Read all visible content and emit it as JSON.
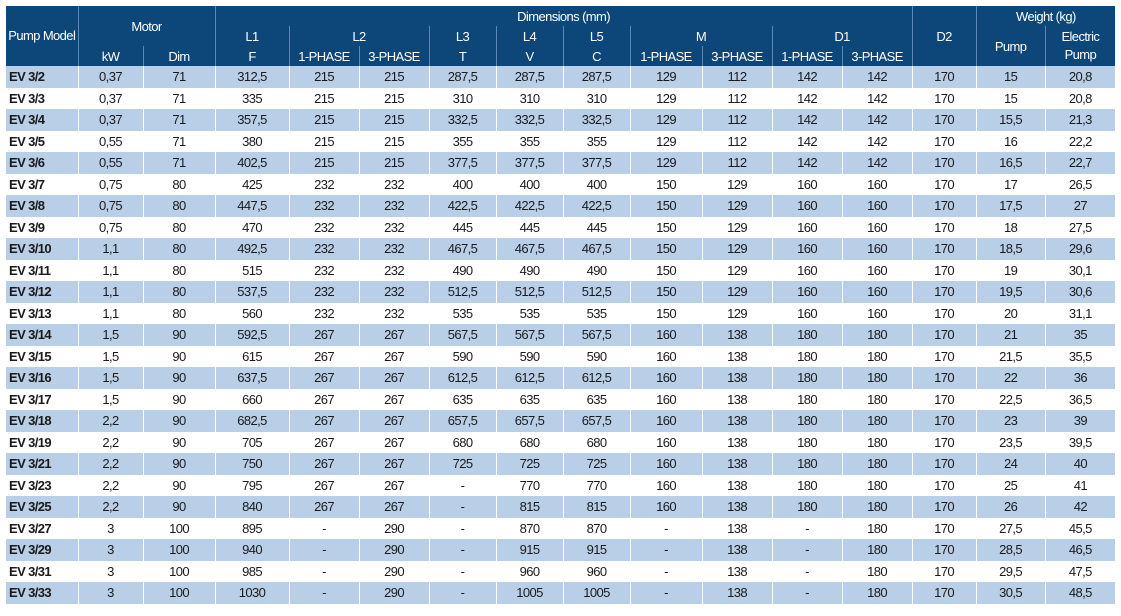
{
  "header": {
    "pump_model": "Pump Model",
    "motor": "Motor",
    "kw": "kW",
    "dim": "Dim",
    "dimensions": "Dimensions (mm)",
    "l1": "L1",
    "l1_sub": "F",
    "l2": "L2",
    "l3": "L3",
    "l3_sub": "T",
    "l4": "L4",
    "l4_sub": "V",
    "l5": "L5",
    "l5_sub": "C",
    "m": "M",
    "d1": "D1",
    "d2": "D2",
    "phase1": "1-PHASE",
    "phase3": "3-PHASE",
    "weight": "Weight (kg)",
    "pump": "Pump",
    "electric_pump": "Electric Pump"
  },
  "rows": [
    [
      "EV 3/2",
      "0,37",
      "71",
      "312,5",
      "215",
      "215",
      "287,5",
      "287,5",
      "287,5",
      "129",
      "112",
      "142",
      "142",
      "170",
      "15",
      "20,8"
    ],
    [
      "EV 3/3",
      "0,37",
      "71",
      "335",
      "215",
      "215",
      "310",
      "310",
      "310",
      "129",
      "112",
      "142",
      "142",
      "170",
      "15",
      "20,8"
    ],
    [
      "EV 3/4",
      "0,37",
      "71",
      "357,5",
      "215",
      "215",
      "332,5",
      "332,5",
      "332,5",
      "129",
      "112",
      "142",
      "142",
      "170",
      "15,5",
      "21,3"
    ],
    [
      "EV 3/5",
      "0,55",
      "71",
      "380",
      "215",
      "215",
      "355",
      "355",
      "355",
      "129",
      "112",
      "142",
      "142",
      "170",
      "16",
      "22,2"
    ],
    [
      "EV 3/6",
      "0,55",
      "71",
      "402,5",
      "215",
      "215",
      "377,5",
      "377,5",
      "377,5",
      "129",
      "112",
      "142",
      "142",
      "170",
      "16,5",
      "22,7"
    ],
    [
      "EV 3/7",
      "0,75",
      "80",
      "425",
      "232",
      "232",
      "400",
      "400",
      "400",
      "150",
      "129",
      "160",
      "160",
      "170",
      "17",
      "26,5"
    ],
    [
      "EV 3/8",
      "0,75",
      "80",
      "447,5",
      "232",
      "232",
      "422,5",
      "422,5",
      "422,5",
      "150",
      "129",
      "160",
      "160",
      "170",
      "17,5",
      "27"
    ],
    [
      "EV 3/9",
      "0,75",
      "80",
      "470",
      "232",
      "232",
      "445",
      "445",
      "445",
      "150",
      "129",
      "160",
      "160",
      "170",
      "18",
      "27,5"
    ],
    [
      "EV 3/10",
      "1,1",
      "80",
      "492,5",
      "232",
      "232",
      "467,5",
      "467,5",
      "467,5",
      "150",
      "129",
      "160",
      "160",
      "170",
      "18,5",
      "29,6"
    ],
    [
      "EV 3/11",
      "1,1",
      "80",
      "515",
      "232",
      "232",
      "490",
      "490",
      "490",
      "150",
      "129",
      "160",
      "160",
      "170",
      "19",
      "30,1"
    ],
    [
      "EV 3/12",
      "1,1",
      "80",
      "537,5",
      "232",
      "232",
      "512,5",
      "512,5",
      "512,5",
      "150",
      "129",
      "160",
      "160",
      "170",
      "19,5",
      "30,6"
    ],
    [
      "EV 3/13",
      "1,1",
      "80",
      "560",
      "232",
      "232",
      "535",
      "535",
      "535",
      "150",
      "129",
      "160",
      "160",
      "170",
      "20",
      "31,1"
    ],
    [
      "EV 3/14",
      "1,5",
      "90",
      "592,5",
      "267",
      "267",
      "567,5",
      "567,5",
      "567,5",
      "160",
      "138",
      "180",
      "180",
      "170",
      "21",
      "35"
    ],
    [
      "EV 3/15",
      "1,5",
      "90",
      "615",
      "267",
      "267",
      "590",
      "590",
      "590",
      "160",
      "138",
      "180",
      "180",
      "170",
      "21,5",
      "35,5"
    ],
    [
      "EV 3/16",
      "1,5",
      "90",
      "637,5",
      "267",
      "267",
      "612,5",
      "612,5",
      "612,5",
      "160",
      "138",
      "180",
      "180",
      "170",
      "22",
      "36"
    ],
    [
      "EV 3/17",
      "1,5",
      "90",
      "660",
      "267",
      "267",
      "635",
      "635",
      "635",
      "160",
      "138",
      "180",
      "180",
      "170",
      "22,5",
      "36,5"
    ],
    [
      "EV 3/18",
      "2,2",
      "90",
      "682,5",
      "267",
      "267",
      "657,5",
      "657,5",
      "657,5",
      "160",
      "138",
      "180",
      "180",
      "170",
      "23",
      "39"
    ],
    [
      "EV 3/19",
      "2,2",
      "90",
      "705",
      "267",
      "267",
      "680",
      "680",
      "680",
      "160",
      "138",
      "180",
      "180",
      "170",
      "23,5",
      "39,5"
    ],
    [
      "EV 3/21",
      "2,2",
      "90",
      "750",
      "267",
      "267",
      "725",
      "725",
      "725",
      "160",
      "138",
      "180",
      "180",
      "170",
      "24",
      "40"
    ],
    [
      "EV 3/23",
      "2,2",
      "90",
      "795",
      "267",
      "267",
      "-",
      "770",
      "770",
      "160",
      "138",
      "180",
      "180",
      "170",
      "25",
      "41"
    ],
    [
      "EV 3/25",
      "2,2",
      "90",
      "840",
      "267",
      "267",
      "-",
      "815",
      "815",
      "160",
      "138",
      "180",
      "180",
      "170",
      "26",
      "42"
    ],
    [
      "EV 3/27",
      "3",
      "100",
      "895",
      "-",
      "290",
      "-",
      "870",
      "870",
      "-",
      "138",
      "-",
      "180",
      "170",
      "27,5",
      "45,5"
    ],
    [
      "EV 3/29",
      "3",
      "100",
      "940",
      "-",
      "290",
      "-",
      "915",
      "915",
      "-",
      "138",
      "-",
      "180",
      "170",
      "28,5",
      "46,5"
    ],
    [
      "EV 3/31",
      "3",
      "100",
      "985",
      "-",
      "290",
      "-",
      "960",
      "960",
      "-",
      "138",
      "-",
      "180",
      "170",
      "29,5",
      "47,5"
    ],
    [
      "EV 3/33",
      "3",
      "100",
      "1030",
      "-",
      "290",
      "-",
      "1005",
      "1005",
      "-",
      "138",
      "-",
      "180",
      "170",
      "30,5",
      "48,5"
    ]
  ]
}
